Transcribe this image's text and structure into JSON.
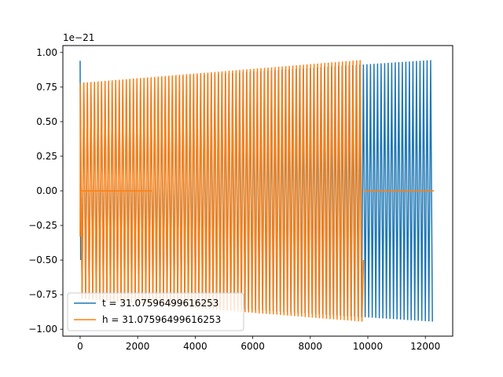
{
  "chart_data": {
    "type": "line",
    "title": "",
    "xlabel": "",
    "ylabel": "",
    "xlim": [
      -600,
      12950
    ],
    "ylim": [
      -1.05,
      1.05
    ],
    "y_offset_label": "1e−21",
    "x_ticks": [
      0,
      2000,
      4000,
      6000,
      8000,
      10000,
      12000
    ],
    "x_tick_labels": [
      "0",
      "2000",
      "4000",
      "6000",
      "8000",
      "10000",
      "12000"
    ],
    "y_ticks": [
      -1.0,
      -0.75,
      -0.5,
      -0.25,
      0.0,
      0.25,
      0.5,
      0.75,
      1.0
    ],
    "y_tick_labels": [
      "−1.00",
      "−0.75",
      "−0.50",
      "−0.25",
      "0.00",
      "0.25",
      "0.50",
      "0.75",
      "1.00"
    ],
    "grid": false,
    "legend_position": "lower-left",
    "series": [
      {
        "name": "t = 31.07596499616253",
        "color": "#1f77b4",
        "x_start": 0,
        "x_end": 12300,
        "cycles": 100,
        "amplitude_start": 0.78,
        "amplitude_end": 0.945,
        "initial_spike": 0.94,
        "initial_dip": -0.5
      },
      {
        "name": "h = 31.07596499616253",
        "color": "#ff7f0e",
        "x_start": 0,
        "x_end": 9850,
        "cycles": 80,
        "amplitude_start": 0.78,
        "amplitude_end": 0.945,
        "initial_dip": -0.33,
        "end_dip": -0.5,
        "flat_zero_segments": [
          [
            0,
            2500
          ],
          [
            9850,
            12300
          ]
        ]
      }
    ]
  }
}
